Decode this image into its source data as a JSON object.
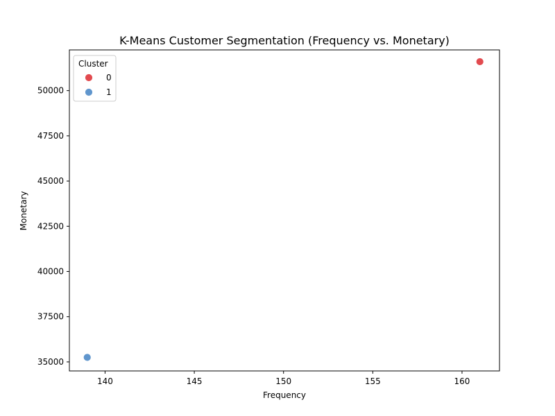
{
  "chart_data": {
    "type": "scatter",
    "title": "K-Means Customer Segmentation (Frequency vs. Monetary)",
    "xlabel": "Frequency",
    "ylabel": "Monetary",
    "xlim": [
      138.0,
      162.1
    ],
    "ylim": [
      34500,
      52250
    ],
    "x_ticks": [
      140,
      145,
      150,
      155,
      160
    ],
    "y_ticks": [
      35000,
      37500,
      40000,
      42500,
      45000,
      47500,
      50000
    ],
    "grid": false,
    "legend": {
      "title": "Cluster",
      "placement": "top-left",
      "entries": [
        {
          "label": "0",
          "color": "#e24a4f"
        },
        {
          "label": "1",
          "color": "#6096cd"
        }
      ]
    },
    "series": [
      {
        "name": "0",
        "color": "#e24a4f",
        "points": [
          {
            "x": 161,
            "y": 51600
          }
        ]
      },
      {
        "name": "1",
        "color": "#6096cd",
        "points": [
          {
            "x": 139,
            "y": 35250
          }
        ]
      }
    ]
  }
}
